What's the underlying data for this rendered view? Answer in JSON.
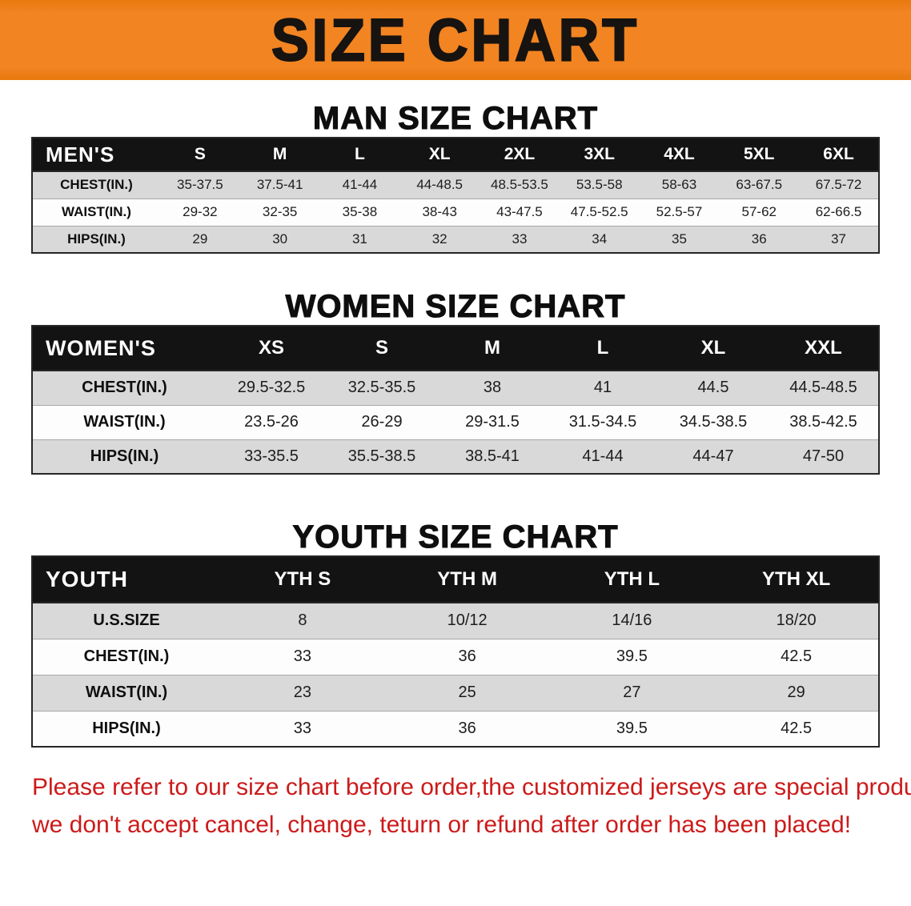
{
  "banner": {
    "title": "SIZE CHART"
  },
  "colors": {
    "banner_orange": "#f28422",
    "table_header_black": "#131313",
    "row_shade_gray": "#d9d9d9",
    "note_red": "#cc1a1a"
  },
  "men_chart": {
    "heading": "MAN SIZE CHART",
    "group_label": "MEN'S",
    "sizes": [
      "S",
      "M",
      "L",
      "XL",
      "2XL",
      "3XL",
      "4XL",
      "5XL",
      "6XL"
    ],
    "rows": [
      {
        "label": "CHEST(IN.)",
        "values": [
          "35-37.5",
          "37.5-41",
          "41-44",
          "44-48.5",
          "48.5-53.5",
          "53.5-58",
          "58-63",
          "63-67.5",
          "67.5-72"
        ]
      },
      {
        "label": "WAIST(IN.)",
        "values": [
          "29-32",
          "32-35",
          "35-38",
          "38-43",
          "43-47.5",
          "47.5-52.5",
          "52.5-57",
          "57-62",
          "62-66.5"
        ]
      },
      {
        "label": "HIPS(IN.)",
        "values": [
          "29",
          "30",
          "31",
          "32",
          "33",
          "34",
          "35",
          "36",
          "37"
        ]
      }
    ]
  },
  "women_chart": {
    "heading": "WOMEN SIZE CHART",
    "group_label": "WOMEN'S",
    "sizes": [
      "XS",
      "S",
      "M",
      "L",
      "XL",
      "XXL"
    ],
    "rows": [
      {
        "label": "CHEST(IN.)",
        "values": [
          "29.5-32.5",
          "32.5-35.5",
          "38",
          "41",
          "44.5",
          "44.5-48.5"
        ]
      },
      {
        "label": "WAIST(IN.)",
        "values": [
          "23.5-26",
          "26-29",
          "29-31.5",
          "31.5-34.5",
          "34.5-38.5",
          "38.5-42.5"
        ]
      },
      {
        "label": "HIPS(IN.)",
        "values": [
          "33-35.5",
          "35.5-38.5",
          "38.5-41",
          "41-44",
          "44-47",
          "47-50"
        ]
      }
    ]
  },
  "youth_chart": {
    "heading": "YOUTH SIZE CHART",
    "group_label": "YOUTH",
    "sizes": [
      "YTH S",
      "YTH M",
      "YTH L",
      "YTH XL"
    ],
    "rows": [
      {
        "label": "U.S.SIZE",
        "values": [
          "8",
          "10/12",
          "14/16",
          "18/20"
        ]
      },
      {
        "label": "CHEST(IN.)",
        "values": [
          "33",
          "36",
          "39.5",
          "42.5"
        ]
      },
      {
        "label": "WAIST(IN.)",
        "values": [
          "23",
          "25",
          "27",
          "29"
        ]
      },
      {
        "label": "HIPS(IN.)",
        "values": [
          "33",
          "36",
          "39.5",
          "42.5"
        ]
      }
    ]
  },
  "footer_note": {
    "line1": "Please refer to our size chart before order,the customized jerseys are special products,",
    "line2": "we don't accept cancel, change, teturn or refund after order has been placed!"
  }
}
